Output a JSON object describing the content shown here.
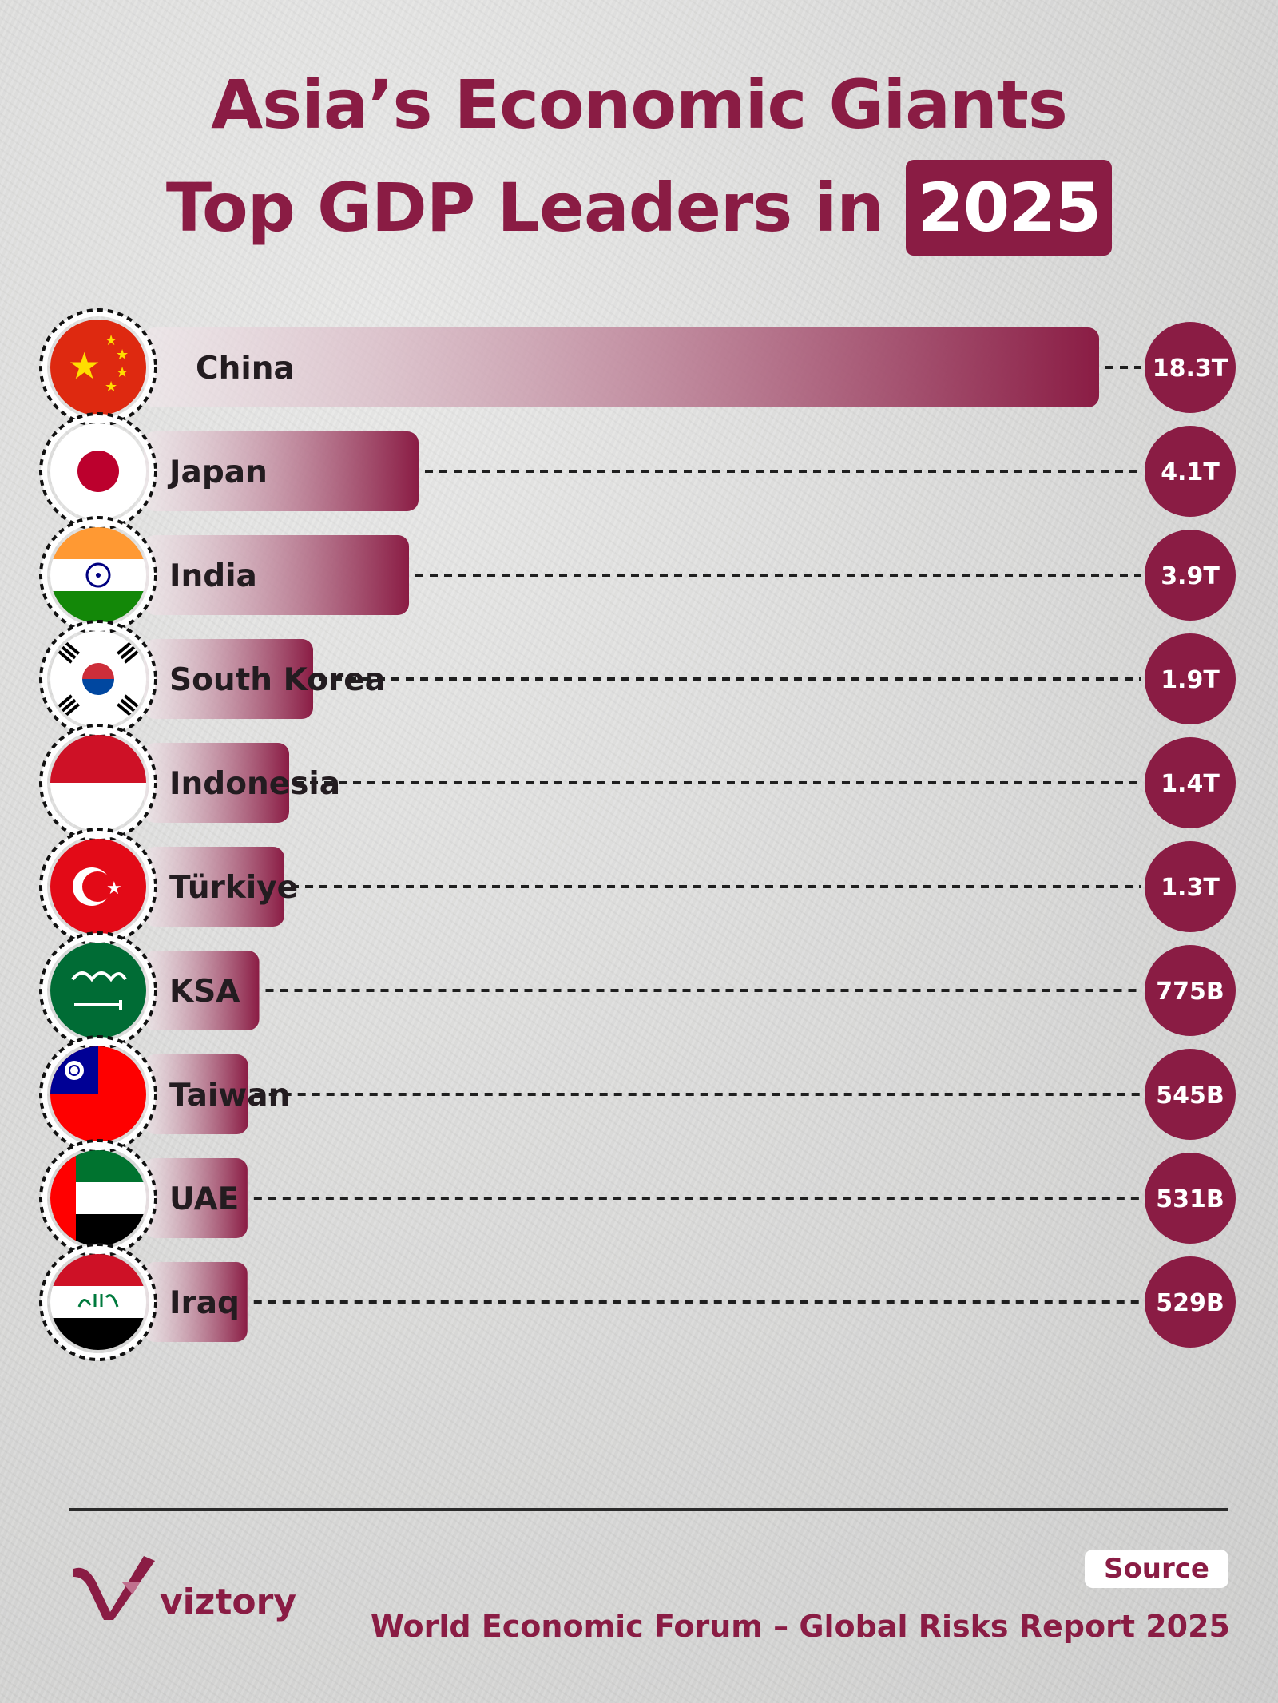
{
  "header": {
    "title_line1": "Asia’s Economic Giants",
    "title_line2": "Top GDP Leaders in",
    "title_year": "2025"
  },
  "chart_data": {
    "type": "bar",
    "orientation": "horizontal",
    "categories": [
      "China",
      "Japan",
      "India",
      "South Korea",
      "Indonesia",
      "Türkiye",
      "KSA",
      "Taiwan",
      "UAE",
      "Iraq"
    ],
    "values": [
      18.3,
      4.1,
      3.9,
      1.9,
      1.4,
      1.3,
      0.775,
      0.545,
      0.531,
      0.529
    ],
    "unit": "USD trillions",
    "value_labels": [
      "18.3T",
      "4.1T",
      "3.9T",
      "1.9T",
      "1.4T",
      "1.3T",
      "775B",
      "545B",
      "531B",
      "529B"
    ],
    "flag_icons": [
      "china-flag-icon",
      "japan-flag-icon",
      "india-flag-icon",
      "south-korea-flag-icon",
      "indonesia-flag-icon",
      "turkiye-flag-icon",
      "ksa-flag-icon",
      "taiwan-flag-icon",
      "uae-flag-icon",
      "iraq-flag-icon"
    ],
    "grid": false,
    "legend": "none",
    "colors": {
      "bar": "#8a1c44",
      "bar_fade": "#f2e8ec",
      "value_badge": "#8a1c44"
    }
  },
  "footer": {
    "brand": "viztory",
    "source_label": "Source",
    "source_text": "World Economic Forum – Global Risks Report 2025"
  }
}
